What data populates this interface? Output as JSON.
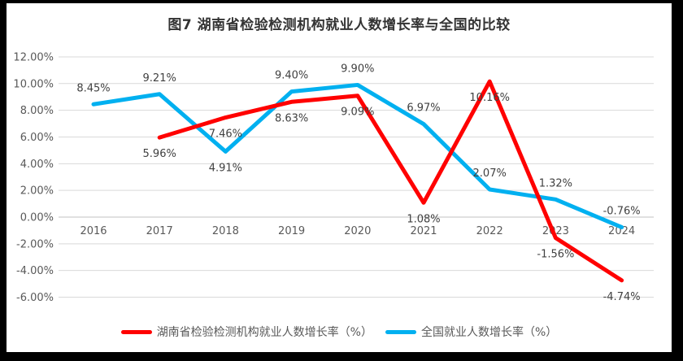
{
  "title": "图7 湖南省检验检测机构就业人数增长率与全国的比较",
  "chart_data": {
    "type": "line",
    "categories": [
      "2016",
      "2017",
      "2018",
      "2019",
      "2020",
      "2021",
      "2022",
      "2023",
      "2024"
    ],
    "series": [
      {
        "name": "湖南省检验检测机构就业人数增长率（%）",
        "color": "#FF0000",
        "values": [
          null,
          5.96,
          7.46,
          8.63,
          9.09,
          1.08,
          10.16,
          -1.56,
          -4.74
        ],
        "point_labels": [
          "",
          "5.96%",
          "7.46%",
          "8.63%",
          "9.09%",
          "1.08%",
          "10.16%",
          "-1.56%",
          "-4.74%"
        ],
        "label_positions": [
          "",
          "below",
          "below",
          "below",
          "below",
          "below",
          "below",
          "below",
          "below"
        ]
      },
      {
        "name": "全国就业人数增长率（%）",
        "color": "#00B0F0",
        "values": [
          8.45,
          9.21,
          4.91,
          9.4,
          9.9,
          6.97,
          2.07,
          1.32,
          -0.76
        ],
        "point_labels": [
          "8.45%",
          "9.21%",
          "4.91%",
          "9.40%",
          "9.90%",
          "6.97%",
          "2.07%",
          "1.32%",
          "-0.76%"
        ],
        "label_positions": [
          "above",
          "above",
          "below",
          "above",
          "above",
          "above",
          "above",
          "above",
          "above"
        ]
      }
    ],
    "y_axis": {
      "min": -6,
      "max": 12,
      "step": 2,
      "tick_labels": [
        "12.00%",
        "10.00%",
        "8.00%",
        "6.00%",
        "4.00%",
        "2.00%",
        "0.00%",
        "-2.00%",
        "-4.00%",
        "-6.00%"
      ]
    },
    "x_axis": {
      "labels_position": "next_to_zero_axis"
    },
    "grid": true,
    "legend_position": "bottom",
    "colors": {
      "gridline": "#d9d9d9",
      "zero_line": "#c0c0c0",
      "axis_text": "#595959",
      "data_label_text": "#404040",
      "title_text": "#333333",
      "frame": "#000000",
      "background": "#ffffff"
    }
  }
}
